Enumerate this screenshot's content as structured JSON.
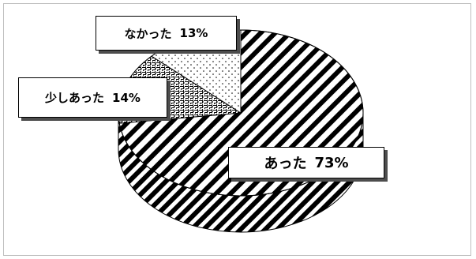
{
  "chart_data": {
    "type": "pie",
    "title": "",
    "slices": [
      {
        "label": "あった",
        "value": 73,
        "value_label": "73%",
        "pattern": "diagonal-stripes"
      },
      {
        "label": "少しあった",
        "value": 14,
        "value_label": "14%",
        "pattern": "lattice"
      },
      {
        "label": "なかった",
        "value": 13,
        "value_label": "13%",
        "pattern": "dots"
      }
    ],
    "style": "3d-tilted",
    "legend": "none",
    "colors": {
      "ink": "#000000",
      "paper": "#ffffff",
      "shadow": "#4d4d4d"
    }
  }
}
